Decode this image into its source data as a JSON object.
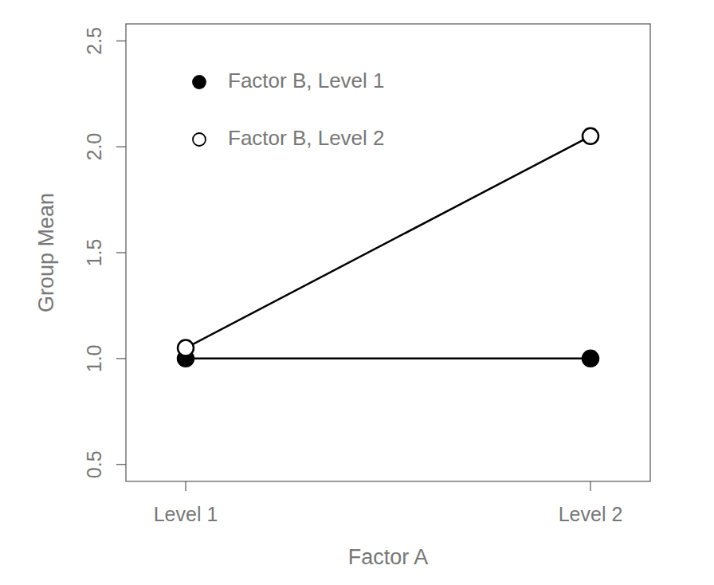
{
  "chart_data": {
    "type": "line",
    "x_label": "Factor A",
    "y_label": "Group Mean",
    "categories": [
      "Level 1",
      "Level 2"
    ],
    "series": [
      {
        "name": "Factor B, Level 1",
        "color": "#000000",
        "marker": "filled-circle",
        "line_style": "solid",
        "values": [
          1.0,
          1.0
        ]
      },
      {
        "name": "Factor B, Level 2",
        "color": "#000000",
        "marker": "open-circle",
        "line_style": "solid",
        "values": [
          1.05,
          2.05
        ]
      }
    ],
    "ylim": [
      0.42,
      2.58
    ],
    "yticks": [
      0.5,
      {
        "value": 1,
        "label": "1.0"
      },
      1.5,
      {
        "value": 2,
        "label": "2.0"
      },
      2.5
    ],
    "legend": "top-left",
    "grid": false
  }
}
